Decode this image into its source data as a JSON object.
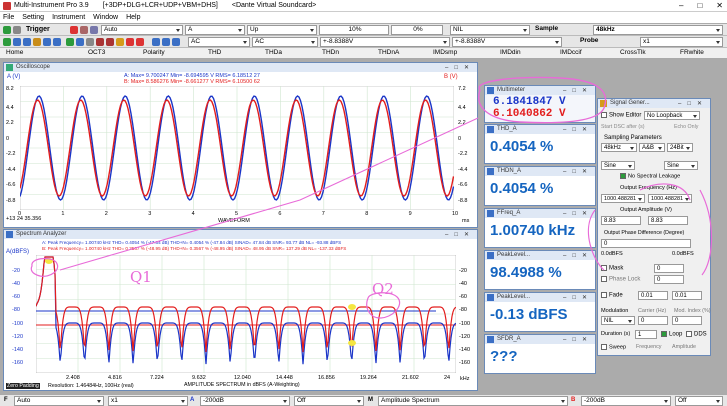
{
  "app": {
    "title": "Multi-Instrument Pro 3.9",
    "config": "[+3DP+DLG+LCR+UDP+VBM+DHS]",
    "device": "<Dante Virtual Soundcard>",
    "menu": [
      "File",
      "Setting",
      "Instrument",
      "Window",
      "Help"
    ]
  },
  "toolbar1": {
    "trigger": "Trigger",
    "trigger_mode": "Auto",
    "channel": "A",
    "edge": "Up",
    "level": "10%",
    "pre": "0%",
    "nil": "NIL",
    "sample_label": "Sample",
    "sample_rate": "48kHz"
  },
  "toolbar2": {
    "coupling_a": "AC",
    "coupling_b": "AC",
    "range_a": "+-8.8388V",
    "range_b": "+-8.8388V",
    "probe_label": "Probe",
    "probe_value": "x1"
  },
  "tabs": [
    "Home",
    "OCT3",
    "Polarity",
    "THD",
    "THDa",
    "THDn",
    "THDnA",
    "IMDsmp",
    "IMDdin",
    "IMDccif",
    "CrossTlk",
    "FRwhite"
  ],
  "oscilloscope": {
    "title": "Oscilloscope",
    "ylabel_a": "A (V)",
    "ylabel_b": "B (V)",
    "stats_a": "A:  Max=    9.700247    Min=   -8.694595    V RMS=    6.18512 27",
    "stats_b": "B:  Max=    8.586276    Min=   -8.661277    V RMS=    6.10500 62",
    "yticks": [
      "8.2",
      "4.4",
      "2.2",
      "0",
      "-2.2",
      "-4.4",
      "-6.6",
      "-8.8"
    ],
    "yticks_r": [
      "7.2",
      "4.4",
      "2.2",
      "0",
      "-2.2",
      "-4.4",
      "-6.6",
      "-8.8"
    ],
    "xticks": [
      "0",
      "1",
      "2",
      "3",
      "4",
      "5",
      "6",
      "7",
      "8",
      "9",
      "10"
    ],
    "xlabel": "WAVEFORM",
    "timestamp": "+13 24 35.356",
    "xunit": "ms"
  },
  "spectrum": {
    "title": "Spectrum Analyzer",
    "ylabel": "A(dBFS)",
    "row_a": "A:  Peak Frequency=    1.00740  kHz  THD=     0.4054 %  (-47.84 dB)  THD+N=    0.4054 %  (-47.84 dB)  SINAD=   47.84 dB  SNR=   93.77 dB  NL=  -93.88 dBFS",
    "row_b": "B:  Peak Frequency=    1.00740  kHz  THD=     0.3567 %  (-48.95 dB)  THD+N=    0.3567 %  (-48.95 dB)  SINAD=   48.95 dB  SNR=  137.29 dB  NL=  -137.33 dBFS",
    "yticks": [
      "-20",
      "-40",
      "-60",
      "-80",
      "-100",
      "-120",
      "-140",
      "-160"
    ],
    "xticks": [
      "2.408",
      "4.816",
      "7.224",
      "9.632",
      "12.040",
      "14.448",
      "16.856",
      "19.264",
      "21.602",
      "24"
    ],
    "xunit": "kHz",
    "xlabel": "AMPLITUDE SPECTRUM in dBFS (A-Weighting)",
    "resolution": "Resolution: 1.46484Hz, 100Hz (real)",
    "zero_padding": "Zero Padding"
  },
  "annotations": {
    "q1": "Q1",
    "q2": "Q2"
  },
  "multimeter": {
    "title": "Multimeter",
    "value_a": "6.1841847 V",
    "value_b": "6.1040862 V"
  },
  "meters": [
    {
      "title": "THD_A",
      "value": "0.4054 %"
    },
    {
      "title": "THDN_A",
      "value": "0.4054 %"
    },
    {
      "title": "FFreq_A",
      "value": "1.00740 kHz"
    },
    {
      "title": "PeakLevel...",
      "value": "98.4988 %"
    },
    {
      "title": "PeakLevel...",
      "value": "-0.13 dBFS"
    },
    {
      "title": "SFDR_A",
      "value": "???"
    }
  ],
  "siggen": {
    "title": "Signal Gener...",
    "show_editor": "Show Editor",
    "loopback": "No Loopback",
    "start_dsc": "Start DSC after (s)",
    "echo_only": "Echo Only",
    "sampling_params": "Sampling Parameters",
    "rate": "48kHz",
    "chan": "A&B",
    "bits": "24Bit",
    "wave_a": "Sine",
    "wave_b": "Sine",
    "no_leakage": "No Spectral Leakage",
    "out_freq_label": "Output Frequency (Hz)",
    "freq_a": "1000.488281",
    "freq_b": "1000.488281",
    "amp_label": "Output Amplitude (V)",
    "amp_a": "8.83",
    "amp_b": "8.83",
    "phase_label": "Output Phase Difference (Degree)",
    "phase": "0",
    "dbfs_a": "0.0dBFS",
    "dbfs_b": "0.0dBFS",
    "mask": "Mask",
    "mask_val": "0",
    "phase_lock": "Phase Lock",
    "phase_lock_val": "0",
    "fade": "Fade",
    "fade_1": "0.01",
    "fade_2": "0.01",
    "modulation": "Modulation",
    "carrier": "Carrier (Hz)",
    "mod_index": "Mod. Index (%)",
    "mod_val": "NIL",
    "carrier_val": "0",
    "mod_index_val": "0",
    "duration": "Duration (s)",
    "duration_val": "1",
    "loop": "Loop",
    "dds": "DDS",
    "sweep": "Sweep",
    "frequency": "Frequency",
    "amplitude": "Amplitude"
  },
  "bottombar": {
    "f": "F",
    "auto": "Auto",
    "x1": "x1",
    "a": "A",
    "db_a": "-200dB",
    "off": "Off",
    "m": "M",
    "mode": "Amplitude Spectrum",
    "b": "B",
    "db_b": "-200dB",
    "off_b": "Off"
  },
  "colors": {
    "ch_a": "#1a35c8",
    "ch_b": "#e31d1d",
    "ink": "#e86bd8",
    "accent": "#1565c0"
  }
}
